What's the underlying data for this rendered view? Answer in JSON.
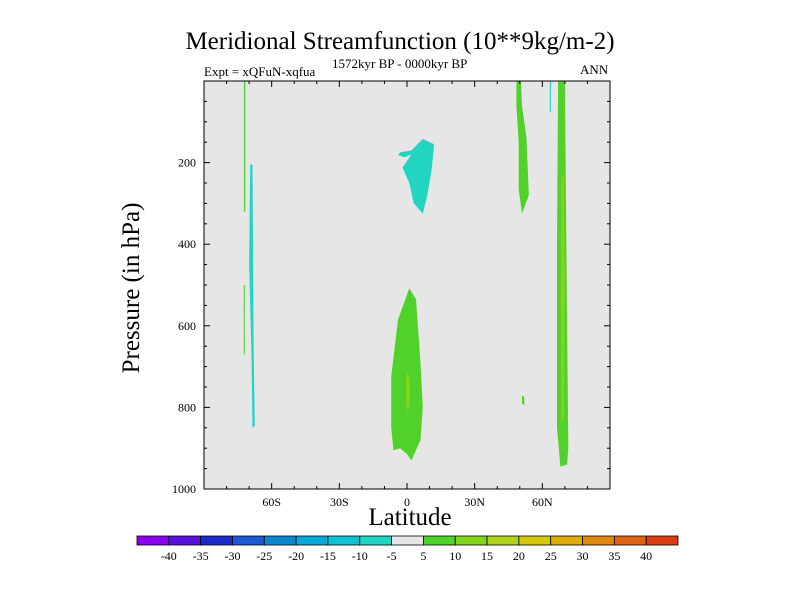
{
  "chart_data": {
    "type": "contour",
    "title": "Meridional Streamfunction (10**9kg/m-2)",
    "left_label": "Expt = xQFuN-xqfua",
    "center_label": "1572kyr BP - 0000kyr BP",
    "right_label": "ANN",
    "xlabel": "Latitude",
    "ylabel": "Pressure (in hPa)",
    "xlim": [
      -90,
      90
    ],
    "ylim": [
      1000,
      0
    ],
    "x_ticks": [
      {
        "value": -60,
        "label": "60S"
      },
      {
        "value": -30,
        "label": "30S"
      },
      {
        "value": 0,
        "label": "0"
      },
      {
        "value": 30,
        "label": "30N"
      },
      {
        "value": 60,
        "label": "60N"
      }
    ],
    "y_ticks": [
      {
        "value": 200,
        "label": "200"
      },
      {
        "value": 400,
        "label": "400"
      },
      {
        "value": 600,
        "label": "600"
      },
      {
        "value": 800,
        "label": "800"
      },
      {
        "value": 1000,
        "label": "1000"
      }
    ],
    "background_color": "#e6e6e6",
    "colorbar": {
      "levels": [
        "-40",
        "-35",
        "-30",
        "-25",
        "-20",
        "-15",
        "-10",
        "-5",
        "5",
        "10",
        "15",
        "20",
        "25",
        "30",
        "35",
        "40"
      ],
      "colors": [
        "#8b00ee",
        "#5512dd",
        "#1f2acb",
        "#1e58d6",
        "#0e88cd",
        "#07aad6",
        "#10c3d3",
        "#22d5c3",
        "#e6e6e6",
        "#50d22a",
        "#84d41c",
        "#b0d41c",
        "#d2c70d",
        "#dcae0b",
        "#e0880e",
        "#e06414",
        "#db3c12"
      ]
    },
    "regions": [
      {
        "name": "upper-mid-negative",
        "value_range": "-10 to -5",
        "color": "#22d5c3",
        "points": [
          [
            -3,
            175
          ],
          [
            2,
            170
          ],
          [
            7,
            142
          ],
          [
            12,
            155
          ],
          [
            11,
            215
          ],
          [
            9,
            280
          ],
          [
            7,
            325
          ],
          [
            3,
            300
          ],
          [
            1,
            250
          ],
          [
            -2,
            212
          ],
          [
            2,
            180
          ],
          [
            -1,
            187
          ],
          [
            -4,
            182
          ]
        ]
      },
      {
        "name": "south-polar-strip",
        "value_range": "-10 to -5",
        "color": "#22d5c3",
        "points": [
          [
            -69.5,
            205
          ],
          [
            -68.5,
            205
          ],
          [
            -68,
            645
          ],
          [
            -67.5,
            845
          ],
          [
            -68.5,
            850
          ],
          [
            -69,
            660
          ],
          [
            -70,
            450
          ]
        ]
      },
      {
        "name": "tropical-lower-positive",
        "value_range": "5 to 10",
        "color": "#50d22a",
        "points": [
          [
            -7,
            725
          ],
          [
            -4,
            585
          ],
          [
            1,
            508
          ],
          [
            4,
            535
          ],
          [
            6,
            690
          ],
          [
            7,
            800
          ],
          [
            6,
            880
          ],
          [
            2,
            930
          ],
          [
            0,
            915
          ],
          [
            -3,
            900
          ],
          [
            -6,
            905
          ],
          [
            -7,
            850
          ]
        ]
      },
      {
        "name": "tropical-core",
        "value_range": "10 to 15",
        "color": "#84d41c",
        "points": [
          [
            -0.5,
            730
          ],
          [
            0.5,
            710
          ],
          [
            1.5,
            760
          ],
          [
            0.5,
            815
          ],
          [
            -0.5,
            790
          ]
        ]
      },
      {
        "name": "north-upper-positive",
        "value_range": "5 to 10",
        "color": "#50d22a",
        "points": [
          [
            48.5,
            0
          ],
          [
            50.5,
            0
          ],
          [
            51,
            60
          ],
          [
            53,
            140
          ],
          [
            54,
            280
          ],
          [
            51,
            325
          ],
          [
            49.5,
            265
          ],
          [
            49.5,
            150
          ],
          [
            48.5,
            60
          ]
        ]
      },
      {
        "name": "north-polar-column",
        "value_range": "5 to 10",
        "color": "#50d22a",
        "points": [
          [
            67,
            0
          ],
          [
            70,
            0
          ],
          [
            70.5,
            300
          ],
          [
            71,
            600
          ],
          [
            71.5,
            900
          ],
          [
            71,
            940
          ],
          [
            68,
            945
          ],
          [
            66.5,
            850
          ],
          [
            66.5,
            400
          ]
        ]
      },
      {
        "name": "north-polar-core",
        "value_range": "10 to 15",
        "color": "#84d41c",
        "points": [
          [
            68.5,
            230
          ],
          [
            69.5,
            230
          ],
          [
            70,
            520
          ],
          [
            69.5,
            820
          ],
          [
            68.5,
            840
          ],
          [
            68.2,
            520
          ]
        ]
      },
      {
        "name": "north-small-blob",
        "value_range": "5 to 10",
        "color": "#50d22a",
        "points": [
          [
            51,
            770
          ],
          [
            52,
            775
          ],
          [
            52,
            795
          ],
          [
            51,
            790
          ]
        ]
      },
      {
        "name": "south-thin-line",
        "value_range": "5 to 10",
        "color": "#50d22a",
        "points": [
          [
            -72.3,
            0
          ],
          [
            -71.7,
            0
          ],
          [
            -71.7,
            320
          ],
          [
            -72.3,
            320
          ]
        ]
      },
      {
        "name": "south-thin-line-lower",
        "value_range": "5 to 10",
        "color": "#50d22a",
        "points": [
          [
            -72.4,
            500
          ],
          [
            -71.9,
            500
          ],
          [
            -71.9,
            670
          ],
          [
            -72.4,
            670
          ]
        ]
      },
      {
        "name": "north-thin-negative",
        "value_range": "-10 to -5",
        "color": "#22d5c3",
        "points": [
          [
            63.3,
            0
          ],
          [
            63.8,
            0
          ],
          [
            63.8,
            75
          ],
          [
            63.3,
            75
          ]
        ]
      }
    ]
  }
}
